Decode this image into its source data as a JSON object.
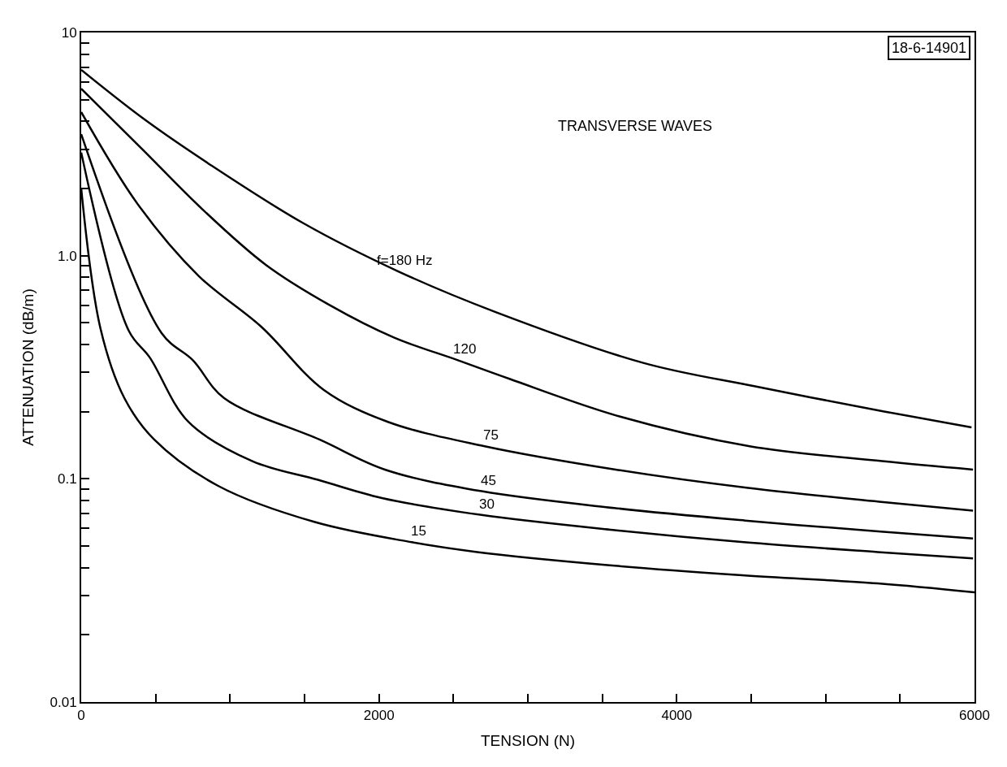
{
  "chart_data": {
    "type": "line",
    "xlabel": "TENSION (N)",
    "ylabel": "ATTENUATION (dB/m)",
    "annotations": [
      "TRANSVERSE WAVES",
      "18-6-14901"
    ],
    "log": true,
    "legend": false,
    "marker": "none",
    "line_style": "solid",
    "xlim": [
      0,
      6000
    ],
    "ylim": [
      0.01,
      10
    ],
    "xticks": [
      0,
      {
        "value": 500,
        "label": null
      },
      {
        "value": 1000,
        "label": null
      },
      {
        "value": 1500,
        "label": null
      },
      2000,
      {
        "value": 2500,
        "label": null
      },
      {
        "value": 3000,
        "label": null
      },
      {
        "value": 3500,
        "label": null
      },
      4000,
      {
        "value": 4500,
        "label": null
      },
      {
        "value": 5000,
        "label": null
      },
      {
        "value": 5500,
        "label": null
      },
      6000
    ],
    "yticks": [
      {
        "value": 0.01,
        "label": "0.01"
      },
      {
        "value": 0.02,
        "label": null
      },
      {
        "value": 0.03,
        "label": null
      },
      {
        "value": 0.04,
        "label": null
      },
      {
        "value": 0.05,
        "label": null
      },
      {
        "value": 0.06,
        "label": null
      },
      {
        "value": 0.07,
        "label": null
      },
      {
        "value": 0.08,
        "label": null
      },
      {
        "value": 0.09,
        "label": null
      },
      {
        "value": 0.1,
        "label": "0.1"
      },
      {
        "value": 0.2,
        "label": null
      },
      {
        "value": 0.3,
        "label": null
      },
      {
        "value": 0.4,
        "label": null
      },
      {
        "value": 0.5,
        "label": null
      },
      {
        "value": 0.6,
        "label": null
      },
      {
        "value": 0.7,
        "label": null
      },
      {
        "value": 0.8,
        "label": null
      },
      {
        "value": 0.9,
        "label": null
      },
      {
        "value": 1,
        "label": "1.0"
      },
      {
        "value": 2,
        "label": null
      },
      {
        "value": 3,
        "label": null
      },
      {
        "value": 4,
        "label": null
      },
      {
        "value": 5,
        "label": null
      },
      {
        "value": 6,
        "label": null
      },
      {
        "value": 7,
        "label": null
      },
      {
        "value": 8,
        "label": null
      },
      {
        "value": 9,
        "label": null
      },
      10
    ],
    "series": [
      {
        "name": "f=180 Hz",
        "color": "#000000",
        "x": [
          0,
          420,
          850,
          1490,
          2130,
          2780,
          3780,
          4520,
          5400,
          5980
        ],
        "values": [
          6.8,
          4.1,
          2.6,
          1.4,
          0.85,
          0.56,
          0.33,
          0.26,
          0.2,
          0.17
        ]
      },
      {
        "name": "120",
        "color": "#000000",
        "x": [
          0,
          410,
          820,
          1240,
          1670,
          2100,
          2530,
          2880,
          3620,
          4490,
          5380,
          5990
        ],
        "values": [
          5.6,
          3.0,
          1.6,
          0.91,
          0.6,
          0.43,
          0.34,
          0.28,
          0.19,
          0.14,
          0.12,
          0.11
        ]
      },
      {
        "name": "75",
        "color": "#000000",
        "x": [
          0,
          380,
          790,
          1210,
          1630,
          2060,
          2710,
          3590,
          4480,
          5360,
          5990
        ],
        "values": [
          4.4,
          1.7,
          0.81,
          0.48,
          0.25,
          0.18,
          0.14,
          0.11,
          0.091,
          0.079,
          0.072
        ]
      },
      {
        "name": "45",
        "color": "#000000",
        "x": [
          0,
          540,
          750,
          960,
          1600,
          2040,
          2690,
          3580,
          4460,
          5370,
          5990
        ],
        "values": [
          3.5,
          0.45,
          0.34,
          0.23,
          0.15,
          0.11,
          0.088,
          0.074,
          0.065,
          0.058,
          0.054
        ]
      },
      {
        "name": "30",
        "color": "#000000",
        "x": [
          0,
          320,
          460,
          720,
          1150,
          1590,
          2020,
          2680,
          3570,
          4450,
          5350,
          5990
        ],
        "values": [
          2.9,
          0.46,
          0.35,
          0.18,
          0.12,
          0.099,
          0.082,
          0.069,
          0.059,
          0.052,
          0.047,
          0.044
        ]
      },
      {
        "name": "15",
        "color": "#000000",
        "x": [
          0,
          130,
          290,
          490,
          920,
          1570,
          2220,
          2660,
          3550,
          4440,
          5350,
          6000
        ],
        "values": [
          2.0,
          0.47,
          0.23,
          0.15,
          0.093,
          0.064,
          0.052,
          0.047,
          0.041,
          0.037,
          0.034,
          0.031
        ]
      }
    ]
  }
}
